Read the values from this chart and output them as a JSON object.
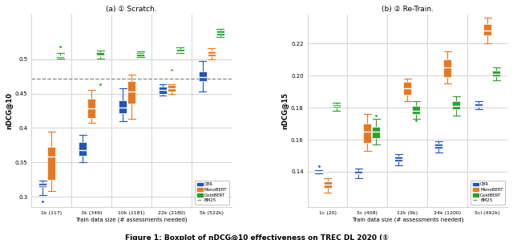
{
  "left_plot": {
    "title": "(a) ① Scratch.",
    "ylabel": "nDCG@10",
    "xlabel": "Train data size (# assessments needed)",
    "xtick_labels": [
      "1k (117)",
      "3k (349)",
      "10k (1181)",
      "22k (2180)",
      "5k (522k)"
    ],
    "xlim": [
      -0.5,
      4.5
    ],
    "ylim": [
      0.285,
      0.565
    ],
    "yticks": [
      0.3,
      0.35,
      0.4,
      0.45,
      0.5
    ],
    "ytick_labels": [
      "0.3",
      "0.35",
      "0.4",
      "0.45",
      "0.5"
    ],
    "dashed_line_y": 0.472,
    "CBR": {
      "medians": [
        0.317,
        0.368,
        0.43,
        0.455,
        0.474
      ],
      "q1": [
        0.314,
        0.36,
        0.422,
        0.45,
        0.468
      ],
      "q3": [
        0.32,
        0.38,
        0.44,
        0.46,
        0.482
      ],
      "whislo": [
        0.303,
        0.35,
        0.41,
        0.447,
        0.453
      ],
      "whishi": [
        0.324,
        0.39,
        0.458,
        0.464,
        0.498
      ],
      "fliers": [
        [
          0.293
        ],
        [],
        [],
        [],
        []
      ]
    },
    "MonoBERT": {
      "medians": [
        0.358,
        0.428,
        0.453,
        0.458,
        0.508
      ],
      "q1": [
        0.325,
        0.415,
        0.435,
        0.453,
        0.504
      ],
      "q3": [
        0.372,
        0.442,
        0.468,
        0.462,
        0.512
      ],
      "whislo": [
        0.308,
        0.407,
        0.413,
        0.45,
        0.5
      ],
      "whishi": [
        0.395,
        0.455,
        0.478,
        0.464,
        0.516
      ],
      "fliers": [
        [],
        [],
        [],
        [
          0.484
        ],
        []
      ]
    },
    "GoldBERT": {
      "medians": [
        0.504,
        0.506,
        0.508,
        0.512,
        0.538
      ],
      "q1": [
        0.502,
        0.504,
        0.505,
        0.51,
        0.535
      ],
      "q3": [
        0.506,
        0.51,
        0.51,
        0.515,
        0.542
      ],
      "whislo": [
        0.501,
        0.501,
        0.503,
        0.509,
        0.533
      ],
      "whishi": [
        0.509,
        0.513,
        0.512,
        0.517,
        0.544
      ],
      "fliers": [
        [
          0.519
        ],
        [
          0.463
        ],
        [],
        [],
        []
      ]
    }
  },
  "right_plot": {
    "title": "(b) ② Re-Train.",
    "ylabel": "nDCG@15",
    "xlabel": "Train data size (# assessments needed)",
    "xtick_labels": [
      "1c (20)",
      "5c (408)",
      "12k (9k)",
      "24k (1200)",
      "5cl (492k)"
    ],
    "xlim": [
      -0.5,
      4.5
    ],
    "ylim": [
      0.118,
      0.238
    ],
    "yticks": [
      0.14,
      0.16,
      0.18,
      0.2,
      0.22
    ],
    "ytick_labels": [
      "0.14",
      "0.16",
      "0.18",
      "0.20",
      "0.22"
    ],
    "dashed_line_y": null,
    "CBR": {
      "medians": [
        0.14,
        0.139,
        0.148,
        0.156,
        0.181
      ],
      "q1": [
        0.1395,
        0.1383,
        0.1465,
        0.1545,
        0.1805
      ],
      "q3": [
        0.1405,
        0.1405,
        0.1495,
        0.1575,
        0.1825
      ],
      "whislo": [
        0.139,
        0.136,
        0.144,
        0.152,
        0.179
      ],
      "whishi": [
        0.141,
        0.142,
        0.151,
        0.159,
        0.184
      ],
      "fliers": [
        [
          0.1435
        ],
        [],
        [],
        [],
        []
      ]
    },
    "MonoBERT": {
      "medians": [
        0.132,
        0.165,
        0.192,
        0.205,
        0.228
      ],
      "q1": [
        0.13,
        0.158,
        0.188,
        0.199,
        0.225
      ],
      "q3": [
        0.134,
        0.17,
        0.196,
        0.21,
        0.232
      ],
      "whislo": [
        0.127,
        0.153,
        0.184,
        0.195,
        0.22
      ],
      "whishi": [
        0.136,
        0.176,
        0.198,
        0.215,
        0.236
      ],
      "fliers": [
        [],
        [],
        [],
        [],
        []
      ]
    },
    "GoldBERT": {
      "medians": [
        0.181,
        0.165,
        0.178,
        0.181,
        0.201
      ],
      "q1": [
        0.18,
        0.161,
        0.176,
        0.179,
        0.1995
      ],
      "q3": [
        0.182,
        0.168,
        0.181,
        0.184,
        0.203
      ],
      "whislo": [
        0.178,
        0.157,
        0.173,
        0.175,
        0.197
      ],
      "whishi": [
        0.183,
        0.173,
        0.184,
        0.187,
        0.205
      ],
      "fliers": [
        [],
        [
          0.175
        ],
        [
          0.172
        ],
        [],
        []
      ]
    }
  },
  "colors": {
    "CBR": "#2255bb",
    "MonoBERT": "#e87820",
    "GoldBERT": "#2ca02c"
  },
  "bg_color": "#ffffff",
  "grid_color": "#cccccc",
  "separator_color": "#cccccc"
}
